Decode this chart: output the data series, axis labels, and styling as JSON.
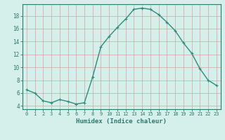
{
  "x": [
    0,
    1,
    2,
    3,
    4,
    5,
    6,
    7,
    8,
    9,
    10,
    11,
    12,
    13,
    14,
    15,
    16,
    17,
    18,
    19,
    20,
    21,
    22,
    23
  ],
  "y": [
    6.5,
    6.0,
    4.8,
    4.5,
    5.0,
    4.7,
    4.3,
    4.5,
    8.5,
    13.2,
    14.8,
    16.2,
    17.5,
    19.0,
    19.2,
    19.0,
    18.2,
    17.0,
    15.7,
    13.8,
    12.2,
    9.8,
    8.0,
    7.2
  ],
  "line_color": "#2d8b7a",
  "marker": "+",
  "bg_color": "#d5efeb",
  "grid_color": "#d8a0a0",
  "axis_color": "#2d7a6e",
  "xlabel": "Humidex (Indice chaleur)",
  "xlim": [
    -0.5,
    23.5
  ],
  "ylim": [
    3.5,
    19.8
  ],
  "yticks": [
    4,
    6,
    8,
    10,
    12,
    14,
    16,
    18
  ],
  "xticks": [
    0,
    1,
    2,
    3,
    4,
    5,
    6,
    7,
    8,
    9,
    10,
    11,
    12,
    13,
    14,
    15,
    16,
    17,
    18,
    19,
    20,
    21,
    22,
    23
  ]
}
